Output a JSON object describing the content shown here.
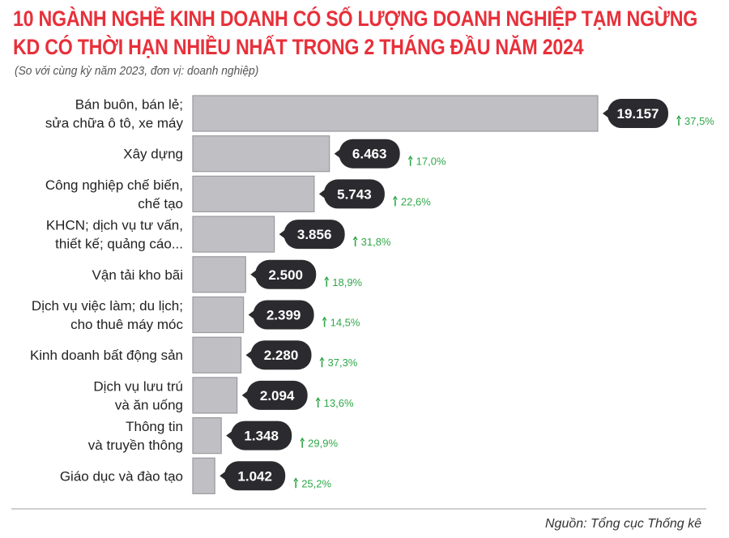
{
  "chart_data": {
    "type": "bar",
    "orientation": "horizontal",
    "title_lines": [
      "10 NGÀNH NGHỀ KINH DOANH CÓ SỐ LƯỢNG DOANH NGHIỆP TẠM NGỪNG",
      "KD CÓ THỜI HẠN NHIỀU NHẤT TRONG 2 THÁNG ĐẦU NĂM 2024"
    ],
    "subtitle": "(So với cùng kỳ năm 2023, đơn vị: doanh nghiệp)",
    "categories": [
      [
        "Bán buôn, bán lẻ;",
        "sửa chữa ô tô, xe máy"
      ],
      [
        "Xây dựng"
      ],
      [
        "Công nghiệp chế biến,",
        "chế tạo"
      ],
      [
        "KHCN; dịch vụ tư vấn,",
        "thiết kế; quảng cáo..."
      ],
      [
        "Vận tải kho bãi"
      ],
      [
        "Dịch vụ việc làm; du lịch;",
        "cho thuê máy móc"
      ],
      [
        "Kinh doanh bất động sản"
      ],
      [
        "Dịch vụ lưu trú",
        "và ăn uống"
      ],
      [
        "Thông tin",
        "và truyền thông"
      ],
      [
        "Giáo dục và đào tạo"
      ]
    ],
    "values": [
      19157,
      6463,
      5743,
      3856,
      2500,
      2399,
      2280,
      2094,
      1348,
      1042
    ],
    "value_labels": [
      "19.157",
      "6.463",
      "5.743",
      "3.856",
      "2.500",
      "2.399",
      "2.280",
      "2.094",
      "1.348",
      "1.042"
    ],
    "change_labels": [
      "37,5%",
      "17,0%",
      "22,6%",
      "31,8%",
      "18,9%",
      "14,5%",
      "37,3%",
      "13,6%",
      "29,9%",
      "25,2%"
    ],
    "change_direction": "up",
    "xlim": [
      0,
      19157
    ],
    "grid": false,
    "colors": {
      "bar": "#c0bfc4",
      "bar_border": "#9a999e",
      "label_bubble": "#2b2a2e",
      "change": "#2fa84a",
      "title": "#e8303a"
    }
  },
  "source": "Nguồn: Tổng cục Thống kê"
}
